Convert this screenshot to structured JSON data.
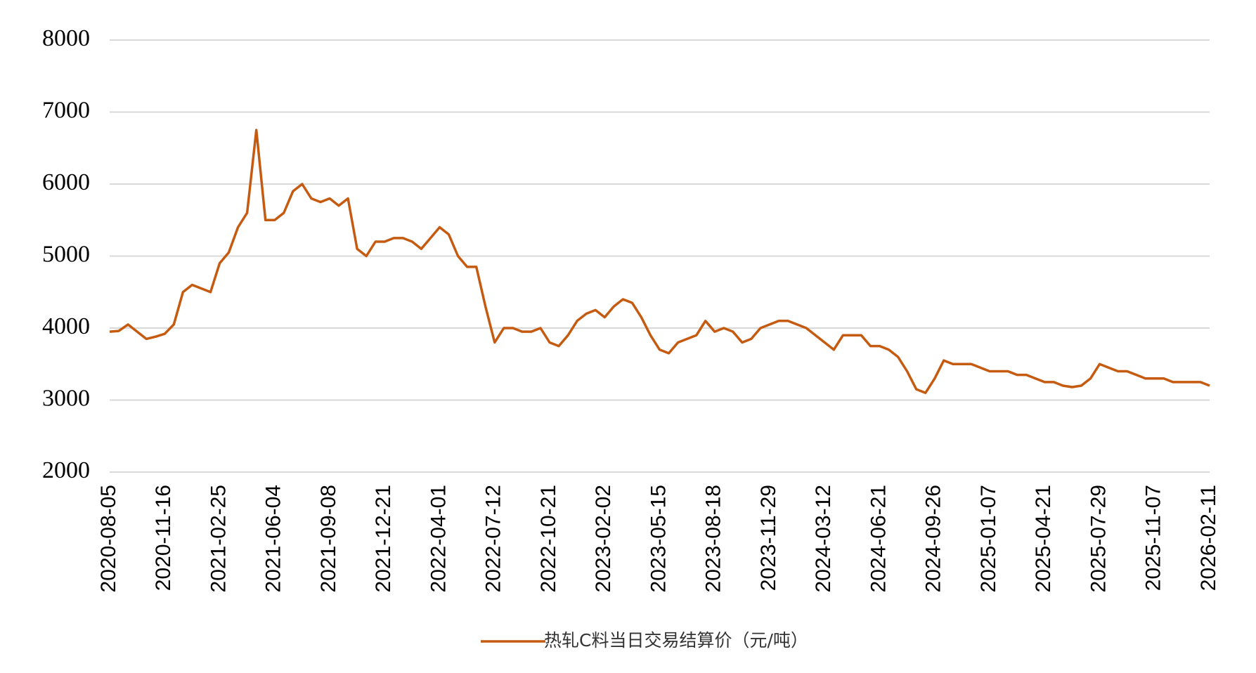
{
  "chart_data": {
    "type": "line",
    "categories": [
      "2020-08-05",
      null,
      null,
      null,
      null,
      null,
      "2020-11-16",
      null,
      null,
      null,
      null,
      null,
      "2021-02-25",
      null,
      null,
      null,
      null,
      null,
      "2021-06-04",
      null,
      null,
      null,
      null,
      null,
      "2021-09-08",
      null,
      null,
      null,
      null,
      null,
      "2021-12-21",
      null,
      null,
      null,
      null,
      null,
      "2022-04-01",
      null,
      null,
      null,
      null,
      null,
      "2022-07-12",
      null,
      null,
      null,
      null,
      null,
      "2022-10-21",
      null,
      null,
      null,
      null,
      null,
      "2023-02-02",
      null,
      null,
      null,
      null,
      null,
      "2023-05-15",
      null,
      null,
      null,
      null,
      null,
      "2023-08-18",
      null,
      null,
      null,
      null,
      null,
      "2023-11-29",
      null,
      null,
      null,
      null,
      null,
      "2024-03-12",
      null,
      null,
      null,
      null,
      null,
      "2024-06-21",
      null,
      null,
      null,
      null,
      null,
      "2024-09-26",
      null,
      null,
      null,
      null,
      null,
      "2025-01-07",
      null,
      null,
      null,
      null,
      null,
      "2025-04-21",
      null,
      null,
      null,
      null,
      null,
      "2025-07-29",
      null,
      null,
      null,
      null,
      null,
      "2025-11-07",
      null,
      null,
      null,
      null,
      null,
      "2026-02-11"
    ],
    "series": [
      {
        "name": "热轧C料当日交易结算价（元/吨）",
        "color": "#c55a11",
        "values": [
          3950,
          3960,
          4050,
          3950,
          3850,
          3880,
          3920,
          4050,
          4500,
          4600,
          4550,
          4500,
          4900,
          5050,
          5400,
          5600,
          6750,
          5500,
          5500,
          5600,
          5900,
          6000,
          5800,
          5750,
          5800,
          5700,
          5800,
          5100,
          5000,
          5200,
          5200,
          5250,
          5250,
          5200,
          5100,
          5250,
          5400,
          5300,
          5000,
          4850,
          4850,
          4300,
          3800,
          4000,
          4000,
          3950,
          3950,
          4000,
          3800,
          3750,
          3900,
          4100,
          4200,
          4250,
          4150,
          4300,
          4400,
          4350,
          4150,
          3900,
          3700,
          3650,
          3800,
          3850,
          3900,
          4100,
          3950,
          4000,
          3950,
          3800,
          3850,
          4000,
          4050,
          4100,
          4100,
          4050,
          4000,
          3900,
          3800,
          3700,
          3900,
          3900,
          3900,
          3750,
          3750,
          3700,
          3600,
          3400,
          3150,
          3100,
          3300,
          3550,
          3500,
          3500,
          3500,
          3450,
          3400,
          3400,
          3400,
          3350,
          3350,
          3300,
          3250,
          3250,
          3200,
          3180,
          3200,
          3300,
          3500,
          3450,
          3400,
          3400,
          3350,
          3300,
          3300,
          3300,
          3250,
          3250,
          3250,
          3250,
          3200
        ]
      }
    ],
    "ylim": [
      2000,
      8000
    ],
    "yticks": [
      2000,
      3000,
      4000,
      5000,
      6000,
      7000,
      8000
    ],
    "grid": true,
    "legend": "bottom"
  }
}
